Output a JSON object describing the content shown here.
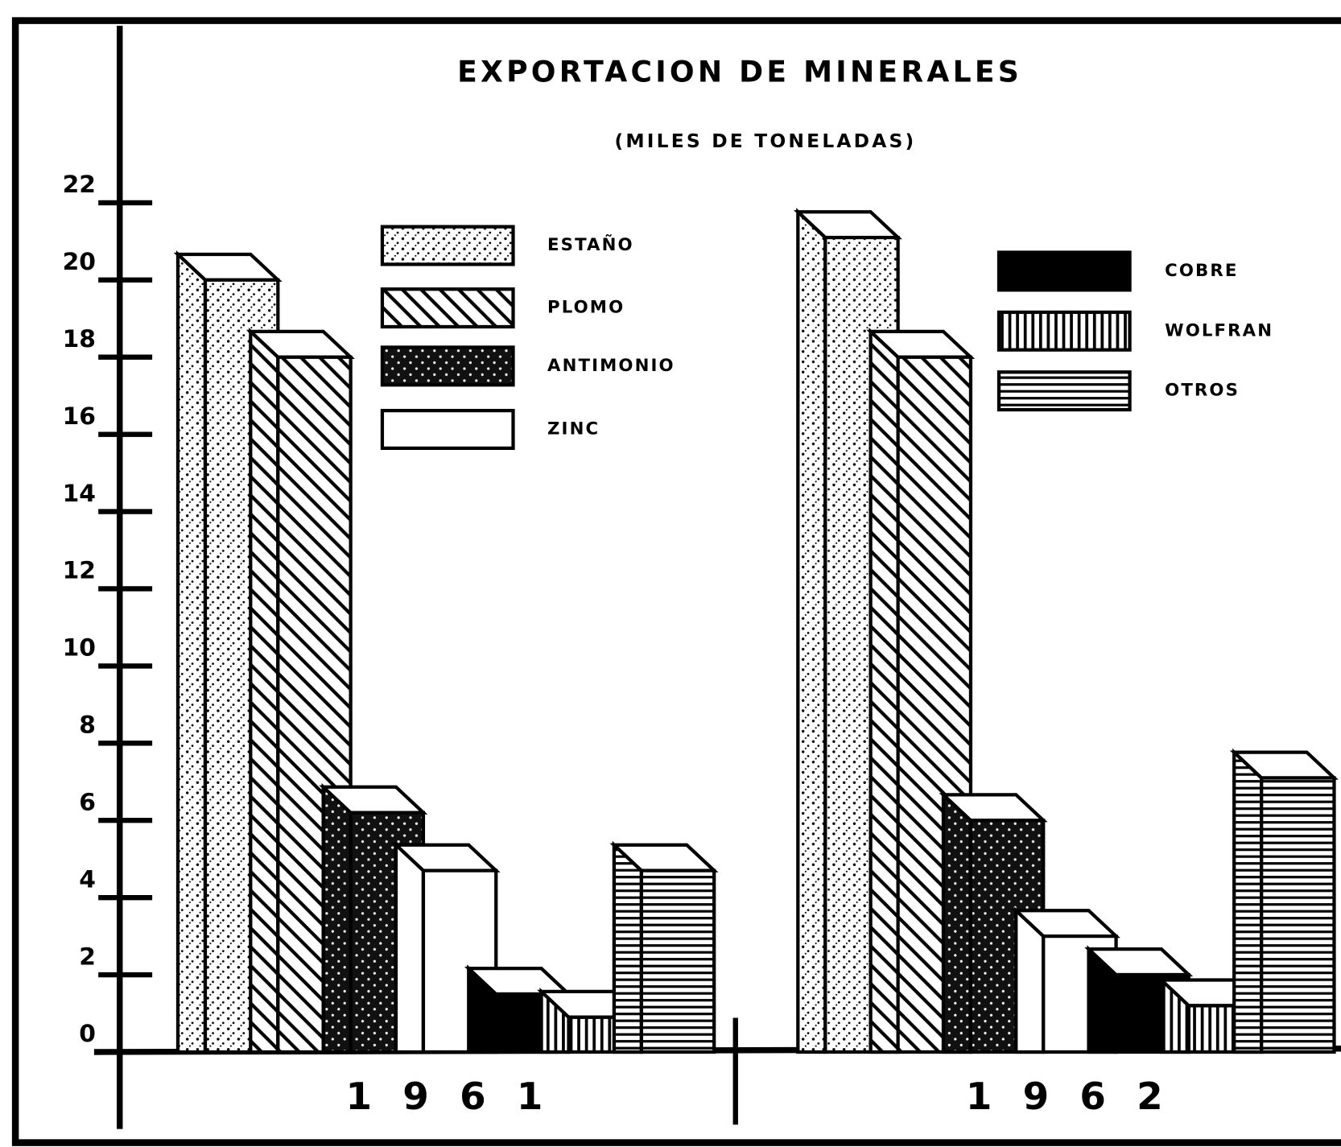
{
  "chart_data": {
    "type": "bar",
    "title": "EXPORTACION DE MINERALES",
    "subtitle": "(MILES DE TONELADAS)",
    "categories": [
      "1961",
      "1962"
    ],
    "series": [
      {
        "name": "ESTAÑO",
        "color": "#ffffff",
        "pattern": "dots",
        "values": [
          20,
          21.1
        ]
      },
      {
        "name": "PLOMO",
        "color": "#ffffff",
        "pattern": "diagonal",
        "values": [
          18,
          18
        ]
      },
      {
        "name": "ANTIMONIO",
        "color": "#111111",
        "pattern": "dark-dots",
        "values": [
          6.2,
          6
        ]
      },
      {
        "name": "ZINC",
        "color": "#ffffff",
        "pattern": "none",
        "values": [
          4.7,
          3
        ]
      },
      {
        "name": "COBRE",
        "color": "#000000",
        "pattern": "none",
        "values": [
          1.5,
          2
        ]
      },
      {
        "name": "WOLFRAN",
        "color": "#ffffff",
        "pattern": "vertical",
        "values": [
          0.9,
          1.2
        ]
      },
      {
        "name": "OTROS",
        "color": "#ffffff",
        "pattern": "horizontal",
        "values": [
          4.7,
          7.1
        ]
      }
    ],
    "ylim": [
      0,
      22
    ],
    "yticks": [
      0,
      2,
      4,
      6,
      8,
      10,
      12,
      14,
      16,
      18,
      20,
      22
    ]
  }
}
